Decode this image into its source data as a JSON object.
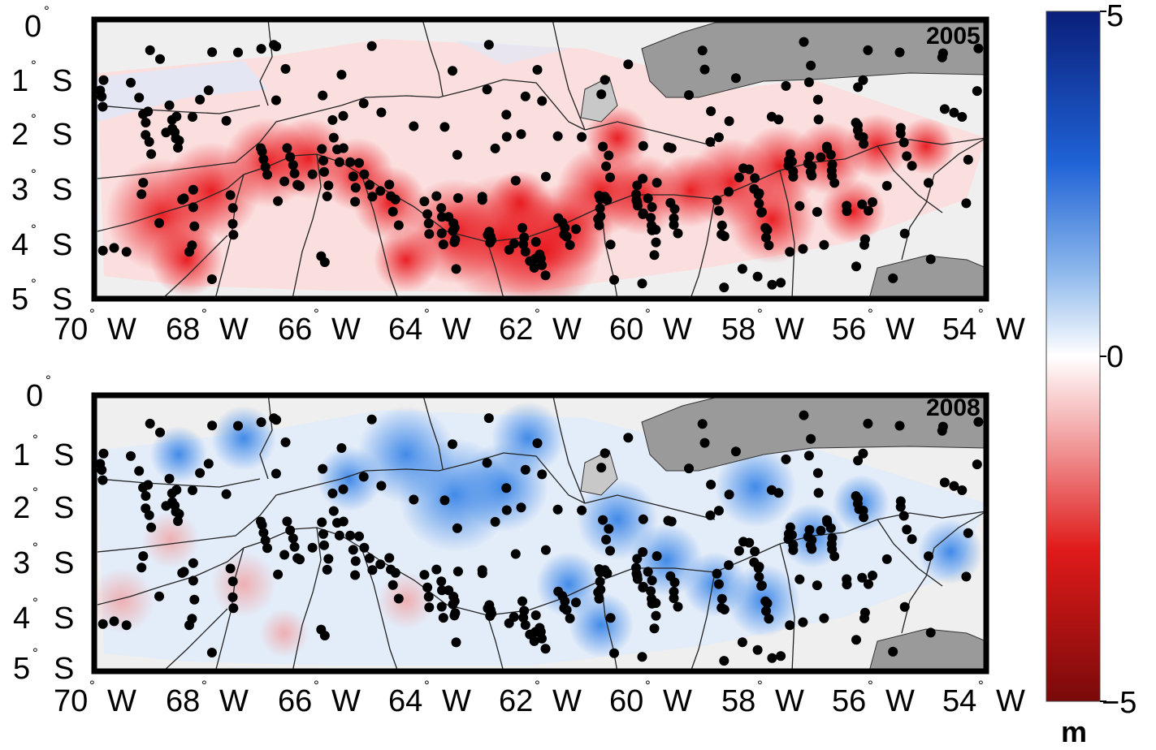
{
  "maps": [
    {
      "id": "map-2005",
      "year_label": "2005",
      "lat_labels": [
        "0",
        "1",
        "2",
        "3",
        "4",
        "5"
      ],
      "lat_hemi": [
        "",
        "S",
        "S",
        "S",
        "S",
        "S"
      ],
      "lon_labels": [
        "70",
        "68",
        "66",
        "64",
        "62",
        "60",
        "58",
        "56",
        "54"
      ],
      "lon_hemi": "W",
      "anomaly": "negative"
    },
    {
      "id": "map-2008",
      "year_label": "2008",
      "lat_labels": [
        "0",
        "1",
        "2",
        "3",
        "4",
        "5"
      ],
      "lat_hemi": [
        "",
        "S",
        "S",
        "S",
        "S",
        "S"
      ],
      "lon_labels": [
        "70",
        "68",
        "66",
        "64",
        "62",
        "60",
        "58",
        "56",
        "54"
      ],
      "lon_hemi": "W",
      "anomaly": "positive"
    }
  ],
  "colorbar": {
    "max_label": "5",
    "mid_label": "0",
    "min_label": "−5",
    "unit": "m",
    "colors": [
      "#0a1f7a",
      "#1f63d6",
      "#8fb9ec",
      "#ffffff",
      "#f2a0a0",
      "#e01a1a",
      "#7a0a0a"
    ]
  },
  "colors": {
    "land_light": "#efefef",
    "land_dark": "#9a9a9a",
    "land_mid": "#c8c8c8",
    "station": "#000000",
    "frame": "#000000"
  }
}
